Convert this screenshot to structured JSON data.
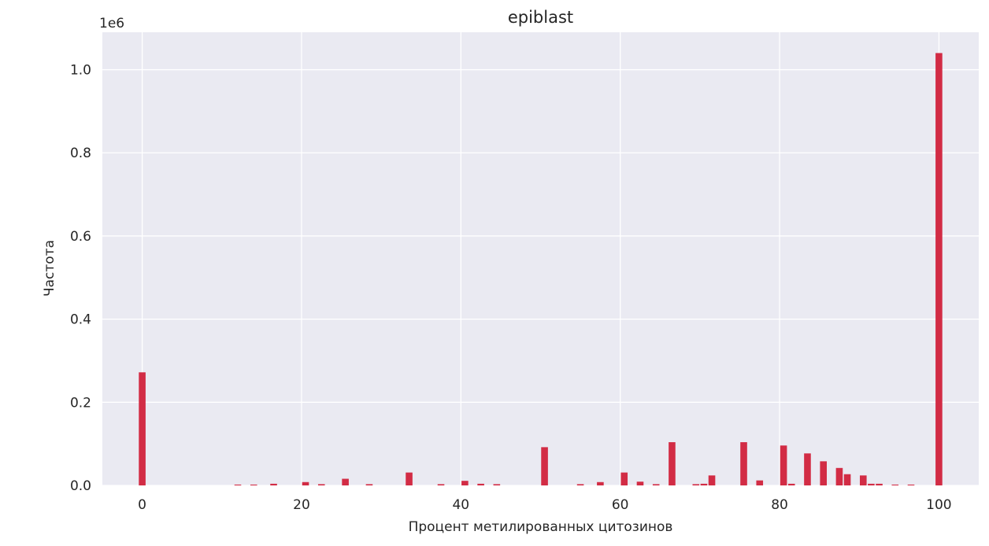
{
  "chart_data": {
    "type": "bar",
    "title": "epiblast",
    "xlabel": "Процент метилированных цитозинов",
    "ylabel": "Частота",
    "y_offset_label": "1e6",
    "xlim": [
      -5,
      105
    ],
    "ylim": [
      0,
      1.09
    ],
    "xticks": [
      0,
      20,
      40,
      60,
      80,
      100
    ],
    "yticks": [
      0.0,
      0.2,
      0.4,
      0.6,
      0.8,
      1.0
    ],
    "ytick_labels": [
      "0.0",
      "0.2",
      "0.4",
      "0.6",
      "0.8",
      "1.0"
    ],
    "grid": true,
    "bin_width": 1,
    "bar_color": "#d22c45",
    "background_color": "#eaeaf2",
    "grid_color": "#ffffff",
    "bars": [
      {
        "x": 0,
        "value": 0.272
      },
      {
        "x": 12,
        "value": 0.002
      },
      {
        "x": 14,
        "value": 0.002
      },
      {
        "x": 16.5,
        "value": 0.004
      },
      {
        "x": 20.5,
        "value": 0.008
      },
      {
        "x": 22.5,
        "value": 0.003
      },
      {
        "x": 25.5,
        "value": 0.016
      },
      {
        "x": 28.5,
        "value": 0.003
      },
      {
        "x": 33.5,
        "value": 0.031
      },
      {
        "x": 37.5,
        "value": 0.003
      },
      {
        "x": 40.5,
        "value": 0.011
      },
      {
        "x": 42.5,
        "value": 0.004
      },
      {
        "x": 44.5,
        "value": 0.003
      },
      {
        "x": 50.5,
        "value": 0.092
      },
      {
        "x": 55,
        "value": 0.003
      },
      {
        "x": 57.5,
        "value": 0.008
      },
      {
        "x": 60.5,
        "value": 0.031
      },
      {
        "x": 62.5,
        "value": 0.009
      },
      {
        "x": 64.5,
        "value": 0.003
      },
      {
        "x": 66.5,
        "value": 0.104
      },
      {
        "x": 69.5,
        "value": 0.003
      },
      {
        "x": 70.5,
        "value": 0.004
      },
      {
        "x": 71.5,
        "value": 0.024
      },
      {
        "x": 75.5,
        "value": 0.104
      },
      {
        "x": 77.5,
        "value": 0.012
      },
      {
        "x": 80.5,
        "value": 0.096
      },
      {
        "x": 81.5,
        "value": 0.004
      },
      {
        "x": 83.5,
        "value": 0.077
      },
      {
        "x": 85.5,
        "value": 0.058
      },
      {
        "x": 87.5,
        "value": 0.042
      },
      {
        "x": 88.5,
        "value": 0.027
      },
      {
        "x": 90.5,
        "value": 0.024
      },
      {
        "x": 91.5,
        "value": 0.004
      },
      {
        "x": 92.5,
        "value": 0.004
      },
      {
        "x": 94.5,
        "value": 0.002
      },
      {
        "x": 96.5,
        "value": 0.002
      },
      {
        "x": 100,
        "value": 1.04
      }
    ]
  }
}
